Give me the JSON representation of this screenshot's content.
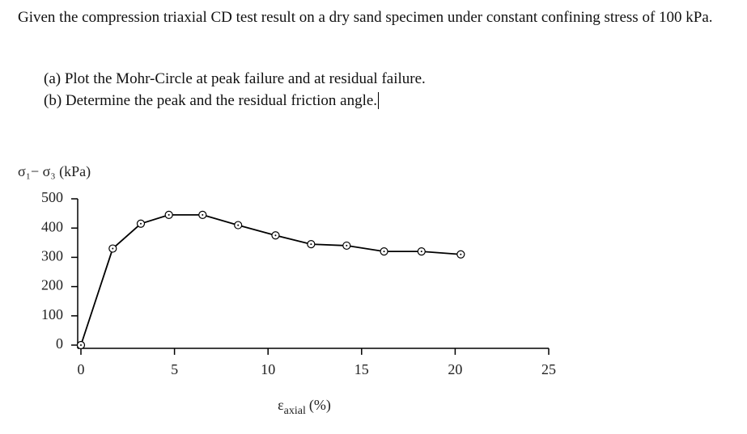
{
  "problem": {
    "intro": "Given the compression triaxial CD test result on a dry sand specimen under constant confining stress of 100 kPa.",
    "parts": [
      "(a) Plot the Mohr-Circle at peak failure and at residual failure.",
      "(b) Determine the peak and the residual friction angle."
    ]
  },
  "chart_data": {
    "type": "line",
    "y_label": "σ₁− σ₃ (kPa)",
    "x_label": {
      "symbol": "ε",
      "subscript": "axial",
      "unit": "(%)"
    },
    "x": [
      0,
      1.7,
      3.2,
      4.7,
      6.5,
      8.4,
      10.4,
      12.3,
      14.2,
      16.2,
      18.2,
      20.3
    ],
    "series": [
      {
        "color": "#000000",
        "values": [
          0,
          330,
          415,
          445,
          445,
          410,
          375,
          345,
          340,
          320,
          320,
          310
        ]
      }
    ],
    "xlim": [
      0,
      25
    ],
    "xticks": [
      0,
      5,
      10,
      15,
      20,
      25
    ],
    "ylim": [
      0,
      500
    ],
    "yticks": [
      0,
      100,
      200,
      300,
      400,
      500
    ]
  }
}
